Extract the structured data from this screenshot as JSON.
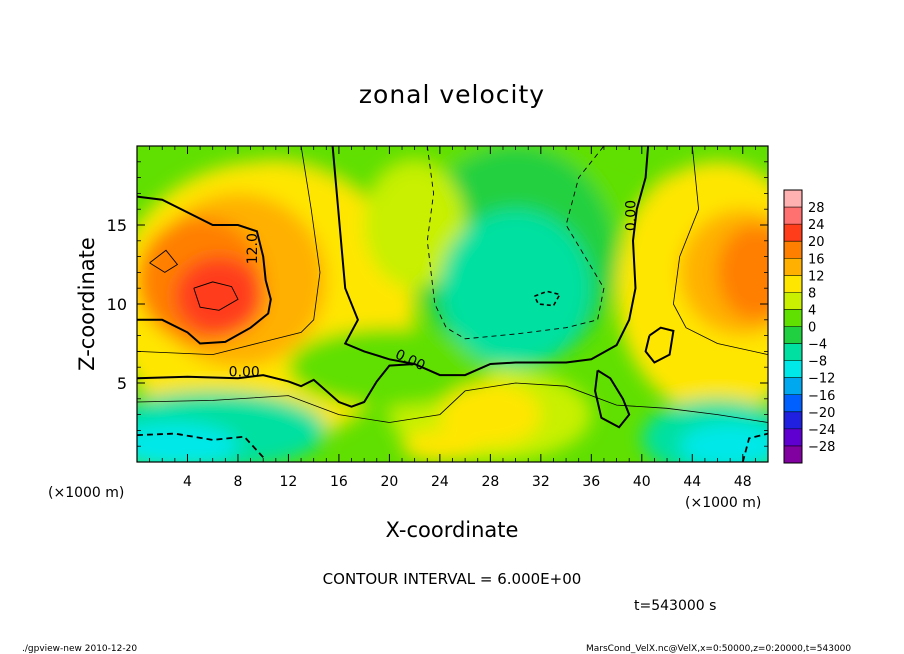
{
  "chart_data": {
    "type": "heatmap",
    "title": "zonal velocity",
    "xlabel": "X-coordinate",
    "ylabel": "Z-coordinate",
    "x_unit_note": "(×1000 m)",
    "y_unit_note": "(×1000 m)",
    "xlim": [
      0,
      50
    ],
    "ylim": [
      0,
      20
    ],
    "x_ticks": [
      "4",
      "8",
      "12",
      "16",
      "20",
      "24",
      "28",
      "32",
      "36",
      "40",
      "44",
      "48"
    ],
    "x_tick_values": [
      4,
      8,
      12,
      16,
      20,
      24,
      28,
      32,
      36,
      40,
      44,
      48
    ],
    "y_ticks": [
      "5",
      "10",
      "15"
    ],
    "y_tick_values": [
      5,
      10,
      15
    ],
    "colorbar": {
      "levels": [
        "28",
        "24",
        "20",
        "16",
        "12",
        "8",
        "4",
        "0",
        "−4",
        "−8",
        "−12",
        "−16",
        "−20",
        "−24",
        "−28"
      ],
      "colors": [
        "#ffb0b0",
        "#ff7070",
        "#ff3d1a",
        "#ff7f00",
        "#ffb000",
        "#ffe600",
        "#c8f000",
        "#60e000",
        "#20d040",
        "#00e0a0",
        "#00e8e8",
        "#00a8f0",
        "#0060ff",
        "#2020e0",
        "#6000d0",
        "#8000a0"
      ]
    },
    "contour_labels": [
      "12.0",
      "0.00",
      "0.00",
      "0.00"
    ],
    "contour_interval": "CONTOUR INTERVAL = 6.000E+00",
    "time_label": "t=543000 s",
    "features": [
      {
        "x": 6,
        "z": 11,
        "value": 20,
        "kind": "max"
      },
      {
        "x": 48,
        "z": 12,
        "value": 16,
        "kind": "max"
      },
      {
        "x": 30,
        "z": 11,
        "value": -9,
        "kind": "min"
      },
      {
        "x": 3,
        "z": 1,
        "value": -14,
        "kind": "min"
      },
      {
        "x": 48,
        "z": 1,
        "value": -13,
        "kind": "min"
      },
      {
        "x": 28,
        "z": 3,
        "value": 9,
        "kind": "max"
      }
    ]
  },
  "footer": {
    "left": "./gpview-new  2010-12-20",
    "right": "MarsCond_VelX.nc@VelX,x=0:50000,z=0:20000,t=543000"
  }
}
